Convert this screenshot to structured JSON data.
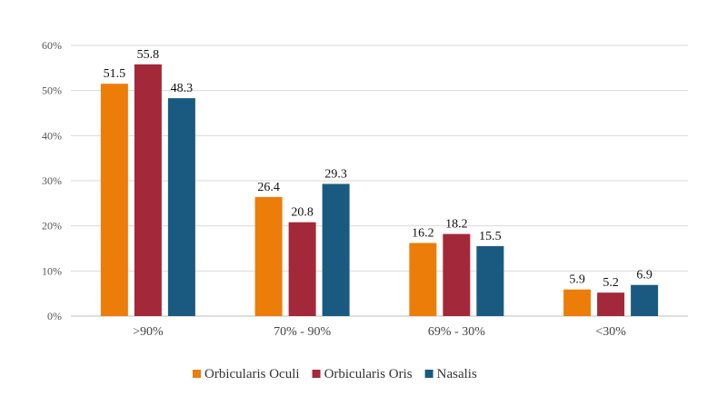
{
  "chart_data": {
    "type": "bar",
    "categories": [
      ">90%",
      "70% - 90%",
      "69% - 30%",
      "<30%"
    ],
    "series": [
      {
        "name": "Orbicularis Oculi",
        "color": "#ED7D09",
        "values": [
          51.5,
          26.4,
          16.2,
          5.9
        ]
      },
      {
        "name": "Orbicularis Oris",
        "color": "#A3283A",
        "values": [
          55.8,
          20.8,
          18.2,
          5.2
        ]
      },
      {
        "name": "Nasalis",
        "color": "#1B5A80",
        "values": [
          48.3,
          29.3,
          15.5,
          6.9
        ]
      }
    ],
    "yticks": [
      "0%",
      "10%",
      "20%",
      "30%",
      "40%",
      "50%",
      "60%"
    ],
    "ylim": [
      0,
      60
    ],
    "grid": true,
    "legend_position": "bottom"
  }
}
